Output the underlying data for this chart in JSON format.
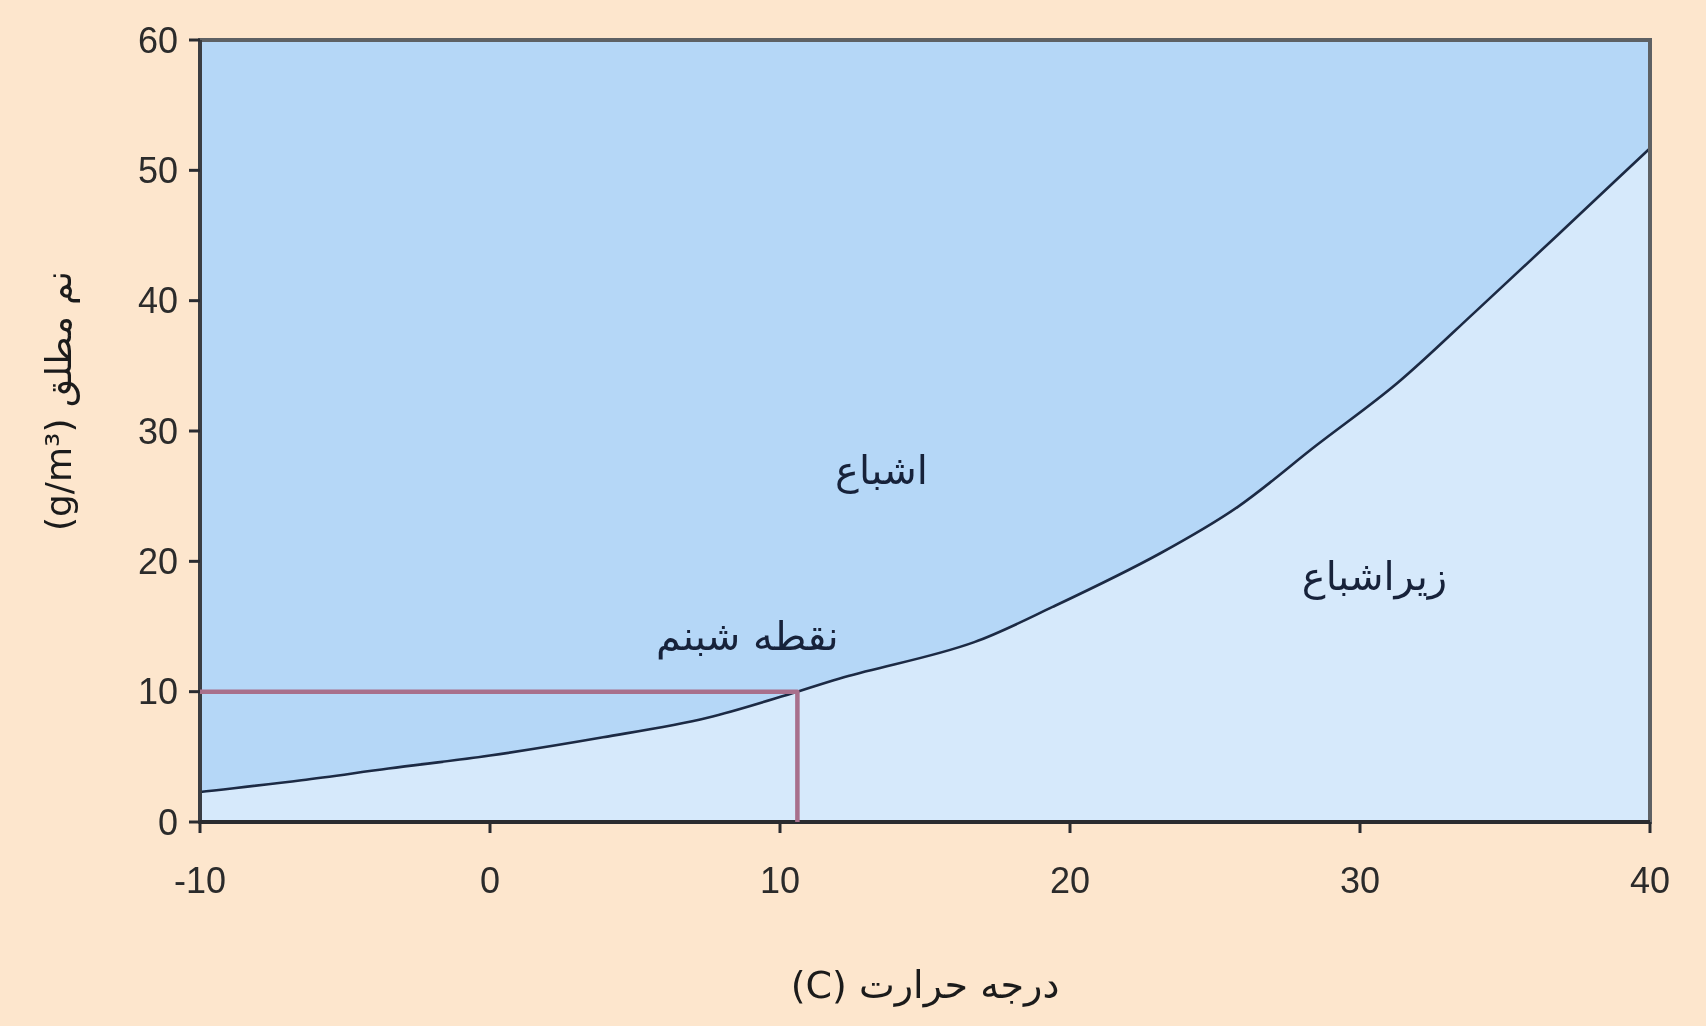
{
  "chart_data": {
    "type": "area",
    "xlabel": "درجه حرارت (C)",
    "ylabel": "نم مطلق (g/m³)",
    "annotations": [
      "اشباع",
      "زیراشباع",
      {
        "text": "نقطه شبنم",
        "x": 10.6,
        "y": 10
      }
    ],
    "xlim": [
      -10,
      40
    ],
    "ylim": [
      0,
      60
    ],
    "xticks": [
      -10,
      0,
      10,
      20,
      30,
      40
    ],
    "yticks": [
      0,
      10,
      20,
      30,
      40,
      50,
      60
    ],
    "series": [
      {
        "color": "#d6e9fb",
        "x": [
          -10,
          -6.5,
          -3.5,
          0,
          3.9,
          7.5,
          10.6,
          12.2,
          16.7,
          19.4,
          23.1,
          25.8,
          28.5,
          31.3,
          34,
          36.8,
          40
        ],
        "values": [
          2.3,
          3.2,
          4.1,
          5.1,
          6.5,
          8.0,
          10.0,
          11.1,
          13.8,
          16.5,
          20.6,
          24.2,
          28.9,
          33.7,
          39.2,
          45.0,
          51.7
        ]
      },
      {
        "type": "line",
        "color": "#a8708c",
        "x": [
          -10,
          10.6,
          10.6
        ],
        "values": [
          10,
          10,
          0
        ]
      }
    ]
  }
}
